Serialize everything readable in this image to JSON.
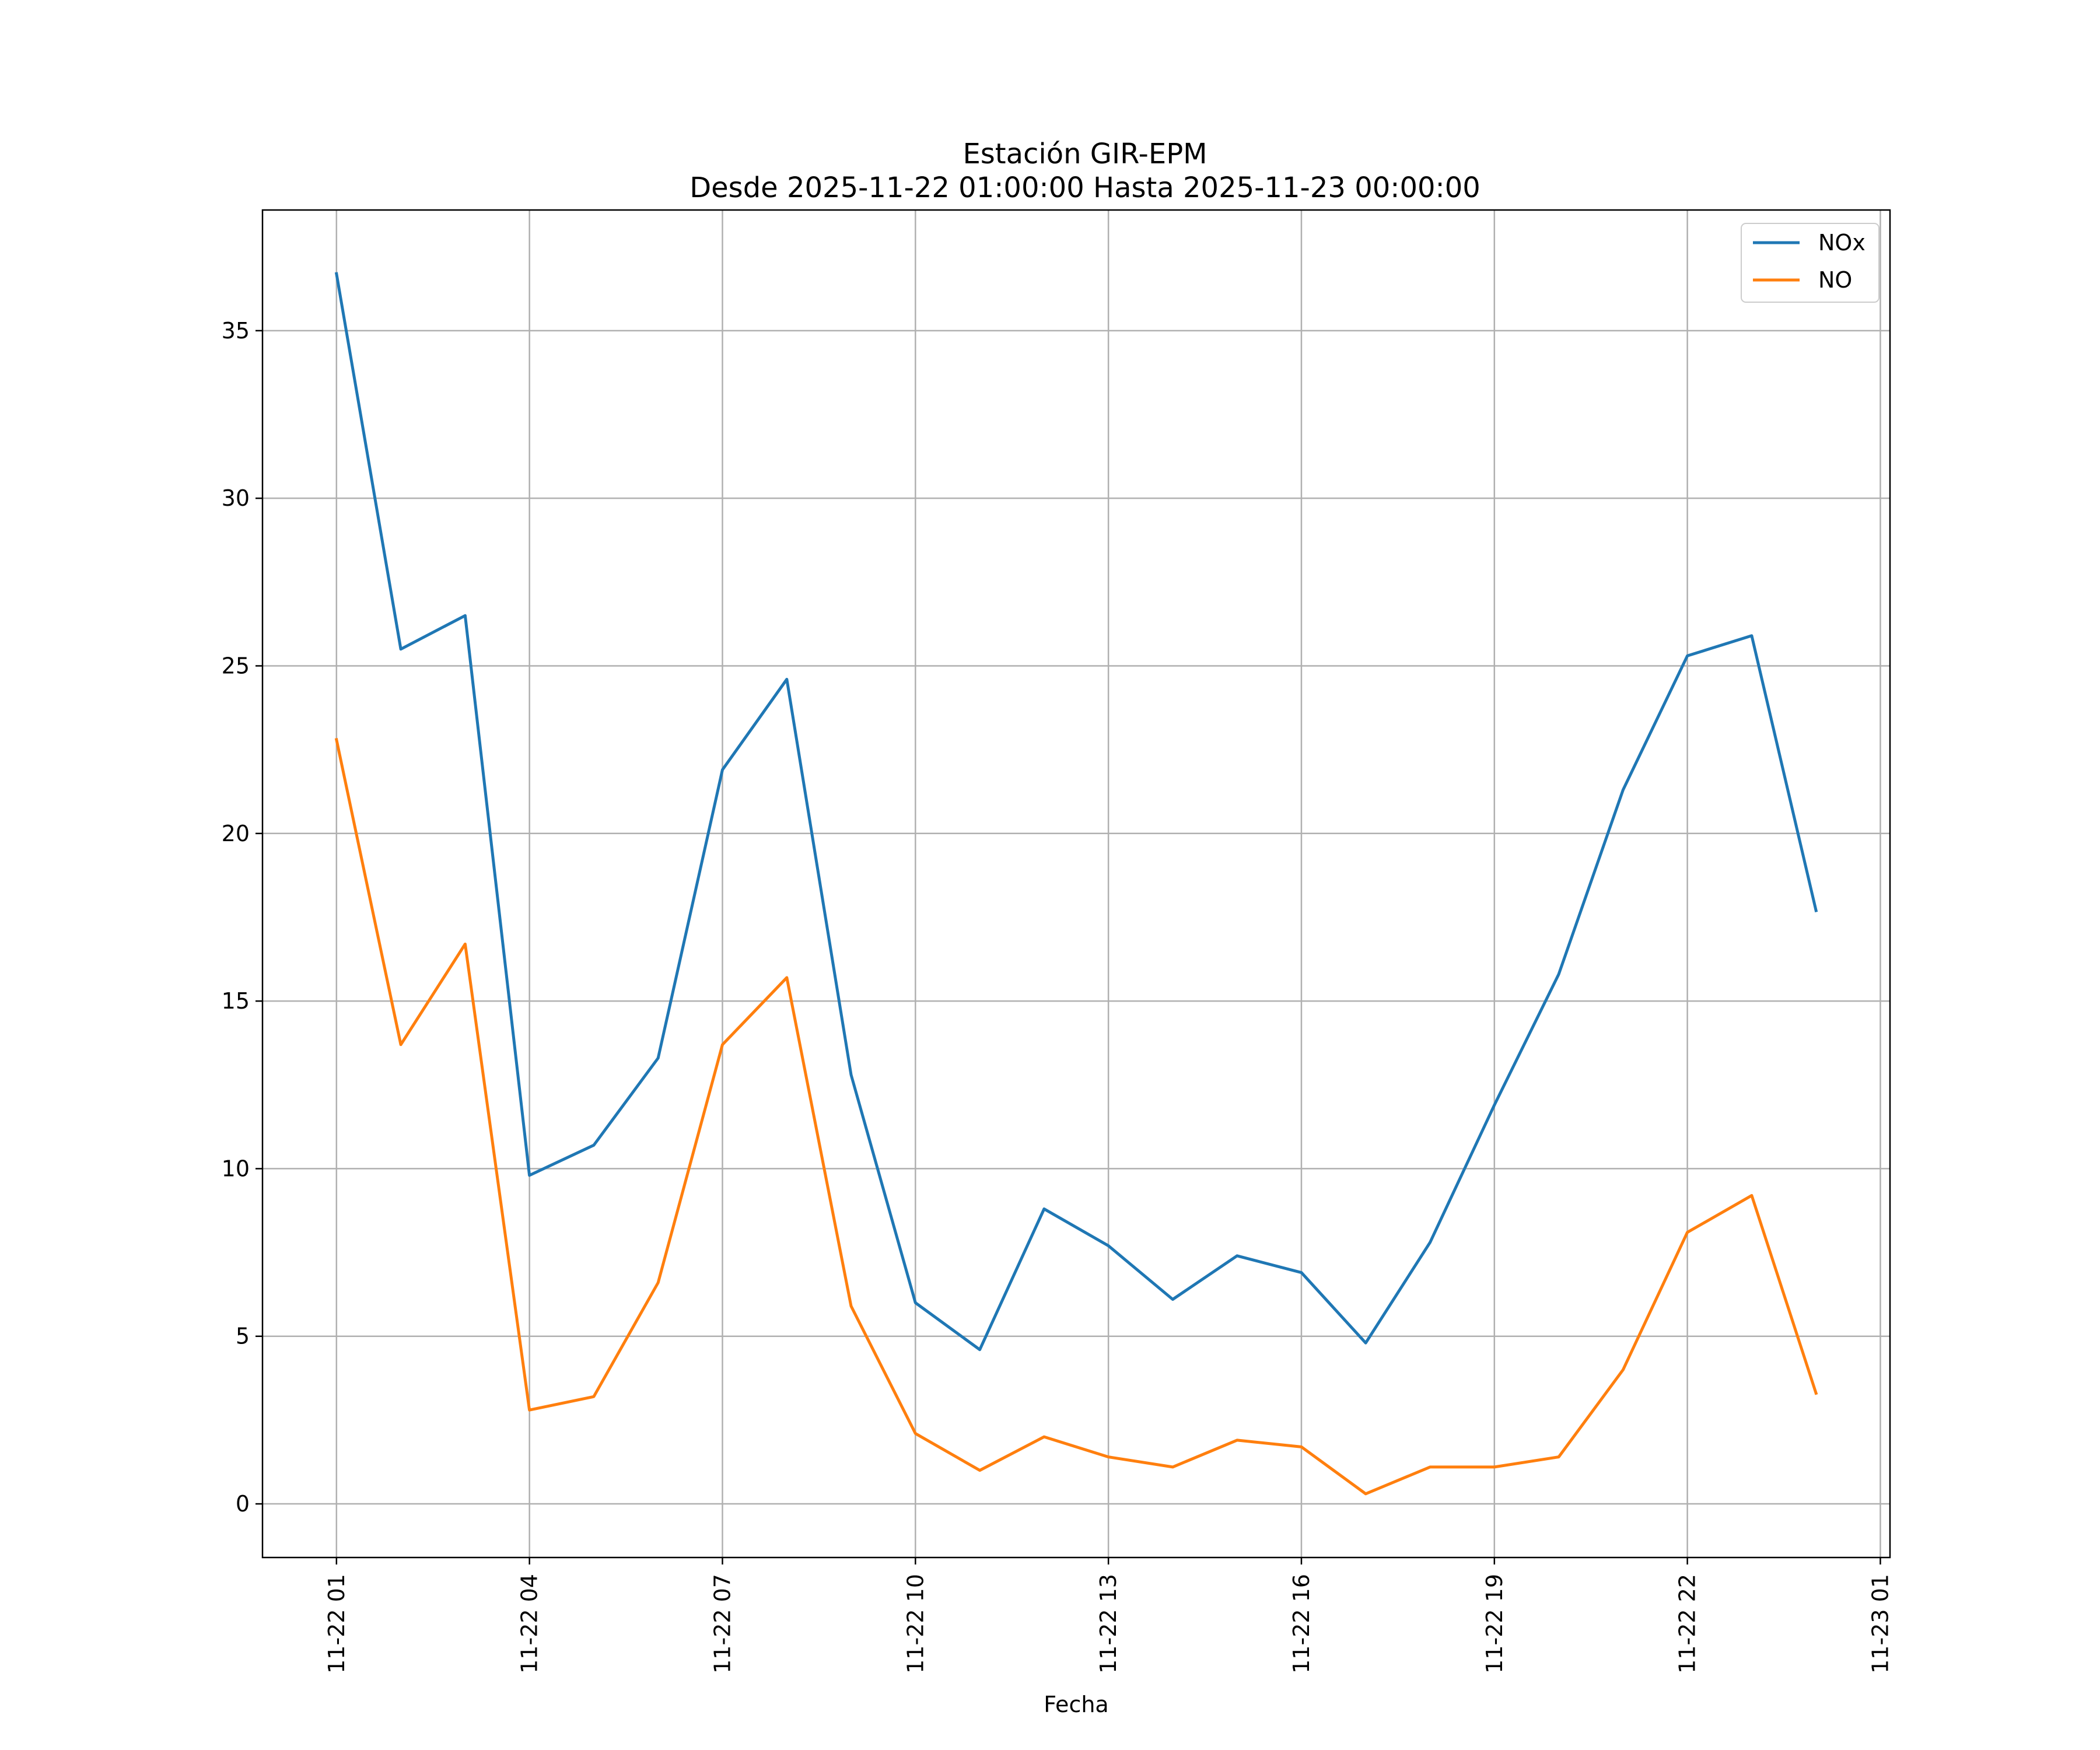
{
  "chart_data": {
    "type": "line",
    "title": "Estación GIR-EPM",
    "subtitle": "Desde 2025-11-22 01:00:00 Hasta 2025-11-23 00:00:00",
    "xlabel": "Fecha",
    "ylabel": "",
    "x": [
      1,
      2,
      3,
      4,
      5,
      6,
      7,
      8,
      9,
      10,
      11,
      12,
      13,
      14,
      15,
      16,
      17,
      18,
      19,
      20,
      21,
      22,
      23,
      24
    ],
    "x_tick_positions": [
      1,
      4,
      7,
      10,
      13,
      16,
      19,
      22,
      25
    ],
    "x_tick_labels": [
      "11-22 01",
      "11-22 04",
      "11-22 07",
      "11-22 10",
      "11-22 13",
      "11-22 16",
      "11-22 19",
      "11-22 22",
      "11-23 01"
    ],
    "y_ticks": [
      0,
      5,
      10,
      15,
      20,
      25,
      30,
      35
    ],
    "y_tick_labels": [
      "0",
      "5",
      "10",
      "15",
      "20",
      "25",
      "30",
      "35"
    ],
    "xlim": [
      -0.15,
      25.15
    ],
    "ylim": [
      -1.6,
      38.6
    ],
    "grid": true,
    "legend_position": "top-right",
    "series": [
      {
        "name": "NOx",
        "color": "#1f77b4",
        "values": [
          36.7,
          25.5,
          26.5,
          9.8,
          10.7,
          13.3,
          21.9,
          24.6,
          12.8,
          6.0,
          4.6,
          8.8,
          7.7,
          6.1,
          7.4,
          6.9,
          4.8,
          7.8,
          11.9,
          15.8,
          21.3,
          25.3,
          25.9,
          17.7
        ]
      },
      {
        "name": "NO",
        "color": "#ff7f0e",
        "values": [
          22.8,
          13.7,
          16.7,
          2.8,
          3.2,
          6.6,
          13.7,
          15.7,
          5.9,
          2.1,
          1.0,
          2.0,
          1.4,
          1.1,
          1.9,
          1.7,
          0.3,
          1.1,
          1.1,
          1.4,
          4.0,
          8.1,
          9.2,
          3.3
        ]
      }
    ]
  }
}
